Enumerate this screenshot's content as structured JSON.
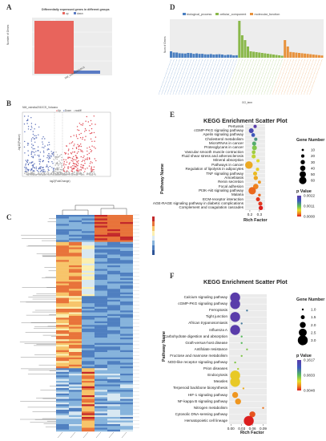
{
  "panel_a": {
    "label": "A",
    "title": "Differentially expressed genes in different groups",
    "legend": [
      "up",
      "down"
    ],
    "ylabel": "Number of Genes",
    "xlabel": "NM_vsIndia2010CS",
    "bar_value": "8773",
    "colors": {
      "up": "#e8645c",
      "down": "#5a7bc4"
    }
  },
  "panel_b": {
    "label": "B",
    "title": "NM_vsIndia2010CS_Volcano",
    "legend": [
      "Up",
      "Down",
      "nodiff"
    ],
    "ylabel": "-log10(Pvalue)",
    "xlabel": "log2(FoldChange)"
  },
  "panel_c": {
    "label": "C"
  },
  "panel_d": {
    "label": "D",
    "legend": [
      "biological_process",
      "cellular_component",
      "molecular_function"
    ],
    "ylabel": "Num of Genes",
    "xlabel": "GO_term",
    "colors": {
      "biological_process": "#4a7fc1",
      "cellular_component": "#8ab84a",
      "molecular_function": "#e8923c"
    }
  },
  "panel_e": {
    "label": "E",
    "title": "KEGG Enrichment Scatter Plot",
    "ylabel": "Pathway Name",
    "xlabel": "Rich Factor",
    "xticks": [
      "0.2",
      "0.3"
    ],
    "size_legend_title": "Gene Number",
    "size_legend": [
      "10",
      "20",
      "30",
      "40",
      "50",
      "60"
    ],
    "color_legend_title": "p Value",
    "color_legend": [
      "0.0022",
      "0.0011",
      "0.0000"
    ]
  },
  "panel_f": {
    "label": "F",
    "title": "KEGG Enrichment Scatter Plot",
    "ylabel": "Pathway Name",
    "xlabel": "Rich Factor",
    "xticks": [
      "0.00",
      "0.03",
      "0.06",
      "0.09"
    ],
    "size_legend_title": "Gene Number",
    "size_legend": [
      "1.0",
      "1.5",
      "2.0",
      "2.5",
      "3.0"
    ],
    "color_legend_title": "p Value",
    "color_legend": [
      "0.1617",
      "0.0833",
      "0.0048"
    ]
  },
  "chart_data": [
    {
      "type": "bar",
      "title": "Differentially expressed genes in different groups",
      "categories": [
        "NM_vsIndia2010CS"
      ],
      "series": [
        {
          "name": "up",
          "values": [
            8773
          ]
        },
        {
          "name": "down",
          "values": [
            700
          ]
        }
      ],
      "ylabel": "Number of Genes",
      "xlabel": ""
    },
    {
      "type": "scatter",
      "title": "KEGG Enrichment Scatter Plot",
      "xlabel": "Rich Factor",
      "ylabel": "Pathway Name",
      "xlim": [
        0.15,
        0.36
      ],
      "categories": [
        "Pertussis",
        "cGMP-PKG signaling pathway",
        "Apelin signaling pathway",
        "Cholesterol metabolism",
        "MicroRNAs in cancer",
        "Proteoglycans in cancer",
        "Vascular smooth muscle contraction",
        "Fluid shear stress and atherosclerosis",
        "Mineral absorption",
        "Pathways in cancer",
        "Regulation of lipolysis in adipocytes",
        "TNF signaling pathway",
        "Amoebiasis",
        "Renin secretion",
        "Focal adhesion",
        "PI3K-Akt signaling pathway",
        "Malaria",
        "ECM-receptor interaction",
        "AGE-RAGE signaling pathway in diabetic complications",
        "Complement and coagulation cascades"
      ],
      "x": [
        0.255,
        0.215,
        0.235,
        0.262,
        0.245,
        0.248,
        0.24,
        0.24,
        0.285,
        0.19,
        0.28,
        0.255,
        0.262,
        0.3,
        0.262,
        0.225,
        0.3,
        0.285,
        0.31,
        0.315
      ],
      "gene_number": [
        20,
        35,
        25,
        20,
        28,
        35,
        25,
        28,
        20,
        62,
        20,
        28,
        30,
        18,
        40,
        60,
        15,
        28,
        28,
        30
      ],
      "p_value": [
        0.0022,
        0.002,
        0.0018,
        0.0015,
        0.0014,
        0.0012,
        0.0011,
        0.001,
        0.0009,
        0.0006,
        0.0008,
        0.0007,
        0.0006,
        0.0005,
        0.0004,
        0.0003,
        0.0003,
        0.0001,
        0.0001,
        0.0
      ]
    },
    {
      "type": "scatter",
      "title": "KEGG Enrichment Scatter Plot",
      "xlabel": "Rich Factor",
      "ylabel": "Pathway Name",
      "xlim": [
        0.0,
        0.1
      ],
      "categories": [
        "Calcium signaling pathway",
        "cGMP-PKG signaling pathway",
        "Ferroptosis",
        "Tight junction",
        "African trypanosomiasis",
        "Influenza A",
        "Carbohydrate digestion and absorption",
        "Graft-versus-host disease",
        "Antifolate resistance",
        "Fructose and mannose metabolism",
        "NOD-like receptor signaling pathway",
        "Prion diseases",
        "Endocytosis",
        "Measles",
        "Terpenoid backbone biosynthesis",
        "HIF-1 signaling pathway",
        "NF-kappa B signaling pathway",
        "Nitrogen metabolism",
        "Cytosolic DNA-sensing pathway",
        "Hematopoietic cell lineage"
      ],
      "x": [
        0.012,
        0.012,
        0.045,
        0.012,
        0.03,
        0.012,
        0.03,
        0.03,
        0.045,
        0.03,
        0.012,
        0.02,
        0.012,
        0.012,
        0.035,
        0.012,
        0.02,
        0.09,
        0.06,
        0.05
      ],
      "gene_number": [
        3,
        3,
        1,
        3,
        1,
        3,
        1,
        1,
        1,
        1,
        1,
        1,
        3,
        3,
        1,
        2,
        2,
        1,
        2,
        3
      ],
      "p_value": [
        0.1617,
        0.1617,
        0.12,
        0.1617,
        0.12,
        0.1617,
        0.1,
        0.1,
        0.09,
        0.09,
        0.09,
        0.08,
        0.06,
        0.06,
        0.05,
        0.04,
        0.04,
        0.03,
        0.02,
        0.0048
      ]
    }
  ]
}
